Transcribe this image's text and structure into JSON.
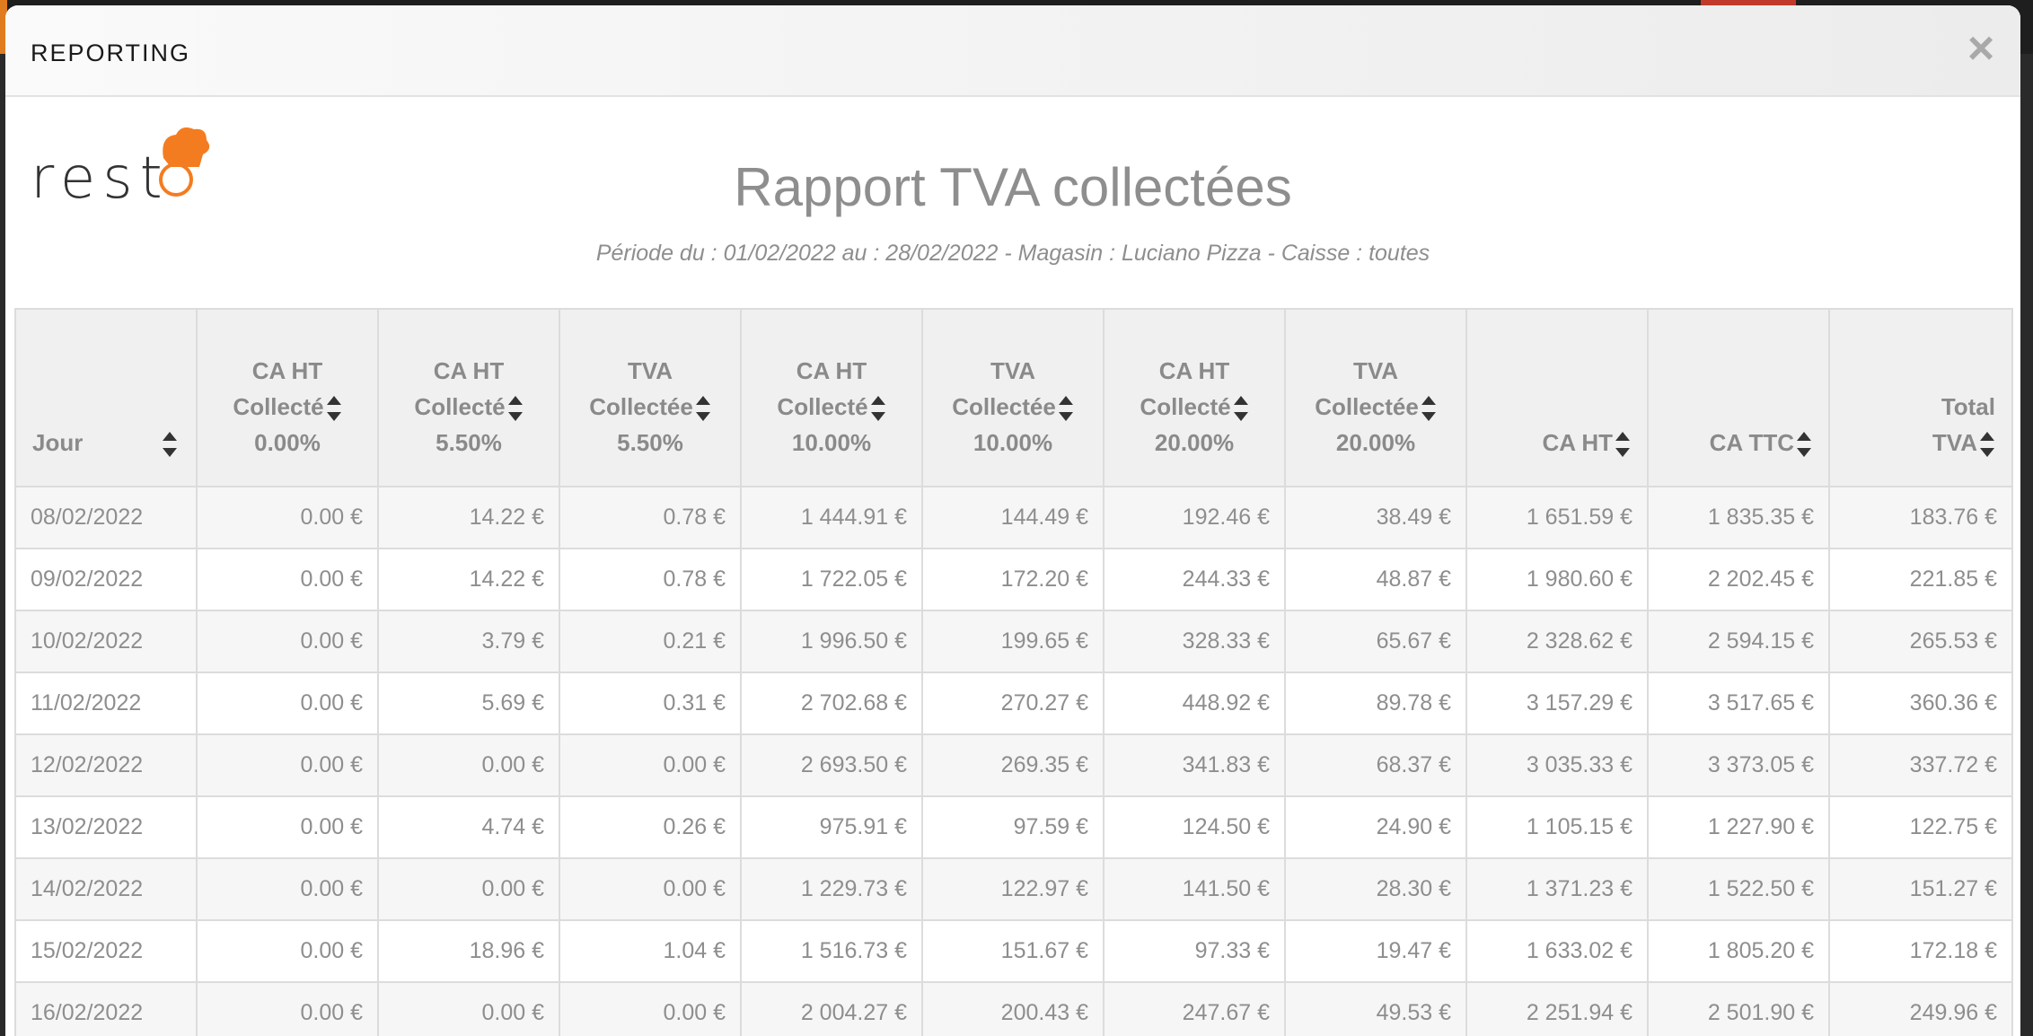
{
  "modal": {
    "title": "REPORTING",
    "close_label": "×"
  },
  "logo": {
    "text": "rest",
    "icon": "chef-hat-icon",
    "accent": "#f47c20"
  },
  "report": {
    "title": "Rapport TVA collectées",
    "subtitle": "Période du : 01/02/2022 au : 28/02/2022 - Magasin : Luciano Pizza - Caisse : toutes"
  },
  "table": {
    "columns": [
      {
        "line1": "",
        "line2": "",
        "line3": "Jour"
      },
      {
        "line1": "CA HT",
        "line2": "Collecté",
        "line3": "0.00%"
      },
      {
        "line1": "CA HT",
        "line2": "Collecté",
        "line3": "5.50%"
      },
      {
        "line1": "TVA",
        "line2": "Collectée",
        "line3": "5.50%"
      },
      {
        "line1": "CA HT",
        "line2": "Collecté",
        "line3": "10.00%"
      },
      {
        "line1": "TVA",
        "line2": "Collectée",
        "line3": "10.00%"
      },
      {
        "line1": "CA HT",
        "line2": "Collecté",
        "line3": "20.00%"
      },
      {
        "line1": "TVA",
        "line2": "Collectée",
        "line3": "20.00%"
      },
      {
        "line1": "",
        "line2": "",
        "line3": "CA HT"
      },
      {
        "line1": "",
        "line2": "",
        "line3": "CA TTC"
      },
      {
        "line1": "",
        "line2": "Total",
        "line3": "TVA"
      }
    ],
    "rows": [
      [
        "08/02/2022",
        "0.00 €",
        "14.22 €",
        "0.78 €",
        "1 444.91 €",
        "144.49 €",
        "192.46 €",
        "38.49 €",
        "1 651.59 €",
        "1 835.35 €",
        "183.76 €"
      ],
      [
        "09/02/2022",
        "0.00 €",
        "14.22 €",
        "0.78 €",
        "1 722.05 €",
        "172.20 €",
        "244.33 €",
        "48.87 €",
        "1 980.60 €",
        "2 202.45 €",
        "221.85 €"
      ],
      [
        "10/02/2022",
        "0.00 €",
        "3.79 €",
        "0.21 €",
        "1 996.50 €",
        "199.65 €",
        "328.33 €",
        "65.67 €",
        "2 328.62 €",
        "2 594.15 €",
        "265.53 €"
      ],
      [
        "11/02/2022",
        "0.00 €",
        "5.69 €",
        "0.31 €",
        "2 702.68 €",
        "270.27 €",
        "448.92 €",
        "89.78 €",
        "3 157.29 €",
        "3 517.65 €",
        "360.36 €"
      ],
      [
        "12/02/2022",
        "0.00 €",
        "0.00 €",
        "0.00 €",
        "2 693.50 €",
        "269.35 €",
        "341.83 €",
        "68.37 €",
        "3 035.33 €",
        "3 373.05 €",
        "337.72 €"
      ],
      [
        "13/02/2022",
        "0.00 €",
        "4.74 €",
        "0.26 €",
        "975.91 €",
        "97.59 €",
        "124.50 €",
        "24.90 €",
        "1 105.15 €",
        "1 227.90 €",
        "122.75 €"
      ],
      [
        "14/02/2022",
        "0.00 €",
        "0.00 €",
        "0.00 €",
        "1 229.73 €",
        "122.97 €",
        "141.50 €",
        "28.30 €",
        "1 371.23 €",
        "1 522.50 €",
        "151.27 €"
      ],
      [
        "15/02/2022",
        "0.00 €",
        "18.96 €",
        "1.04 €",
        "1 516.73 €",
        "151.67 €",
        "97.33 €",
        "19.47 €",
        "1 633.02 €",
        "1 805.20 €",
        "172.18 €"
      ],
      [
        "16/02/2022",
        "0.00 €",
        "0.00 €",
        "0.00 €",
        "2 004.27 €",
        "200.43 €",
        "247.67 €",
        "49.53 €",
        "2 251.94 €",
        "2 501.90 €",
        "249.96 €"
      ]
    ]
  }
}
